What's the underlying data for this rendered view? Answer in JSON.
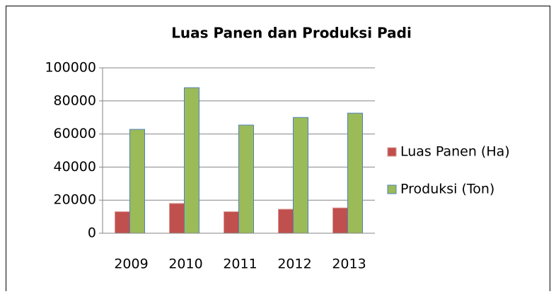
{
  "chart_data": {
    "type": "bar",
    "title": "Luas Panen dan Produksi Padi",
    "categories": [
      "2009",
      "2010",
      "2011",
      "2012",
      "2013"
    ],
    "series": [
      {
        "name": "Luas Panen (Ha)",
        "color": "#c0504d",
        "values": [
          13000,
          18000,
          13000,
          14500,
          15300
        ]
      },
      {
        "name": "Produksi (Ton)",
        "color": "#9bbb59",
        "values": [
          62800,
          88000,
          65400,
          70000,
          72600
        ]
      }
    ],
    "ylim": [
      0,
      100000
    ],
    "yticks": [
      0,
      20000,
      40000,
      60000,
      80000,
      100000
    ],
    "grid": true,
    "legend": "right"
  }
}
